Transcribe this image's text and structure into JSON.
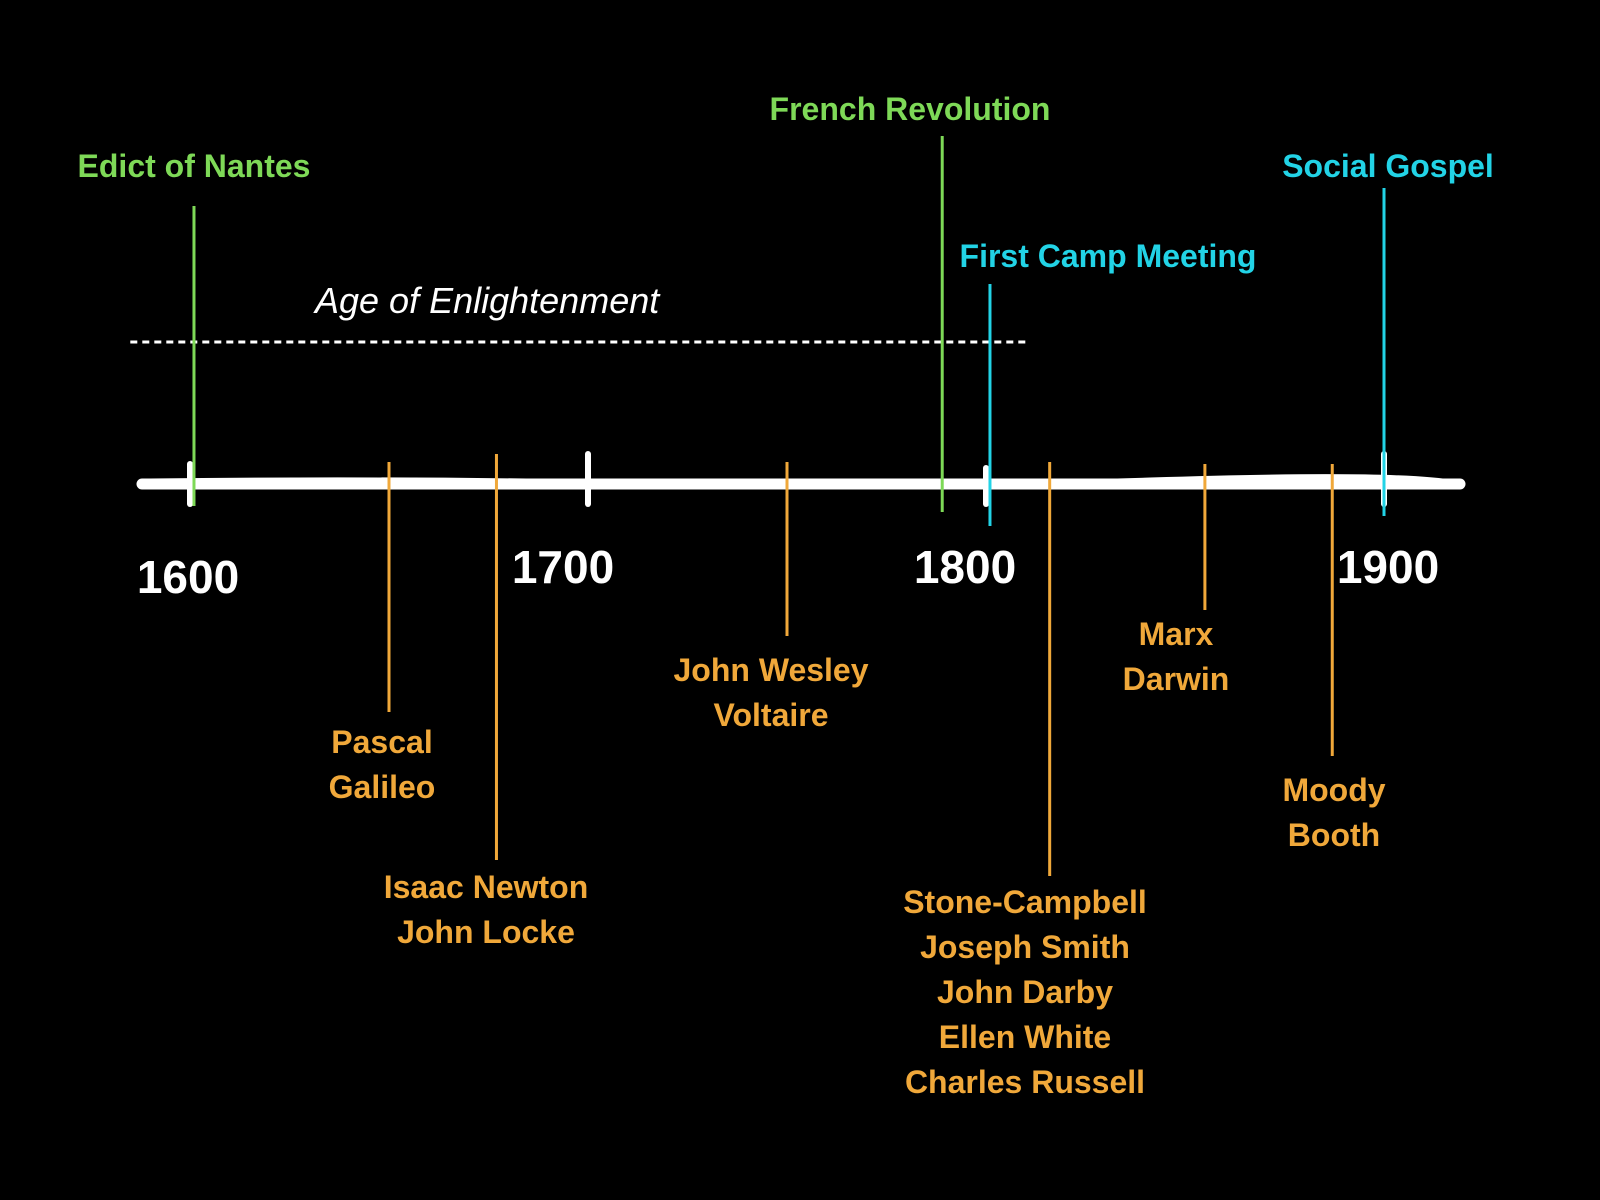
{
  "era": {
    "label": "Age of Enlightenment",
    "start_year": 1585,
    "end_year": 1810
  },
  "axis": {
    "year_labels": [
      "1600",
      "1700",
      "1800",
      "1900"
    ]
  },
  "events": [
    {
      "id": "edict-of-nantes",
      "lines": [
        "Edict of Nantes"
      ],
      "year": 1601,
      "category": "green"
    },
    {
      "id": "french-revolution",
      "lines": [
        "French Revolution"
      ],
      "year": 1789,
      "category": "green"
    },
    {
      "id": "first-camp-meeting",
      "lines": [
        "First Camp Meeting"
      ],
      "year": 1801,
      "category": "cyan"
    },
    {
      "id": "social-gospel",
      "lines": [
        "Social Gospel"
      ],
      "year": 1900,
      "category": "cyan"
    }
  ],
  "people": [
    {
      "id": "pascal-galileo",
      "lines": [
        "Pascal",
        "Galileo"
      ],
      "year": 1650
    },
    {
      "id": "newton-locke",
      "lines": [
        "Isaac Newton",
        "John Locke"
      ],
      "year": 1677
    },
    {
      "id": "wesley-voltaire",
      "lines": [
        "John Wesley",
        "Voltaire"
      ],
      "year": 1750
    },
    {
      "id": "restoration-figures",
      "lines": [
        "Stone-Campbell",
        "Joseph Smith",
        "John Darby",
        "Ellen White",
        "Charles Russell"
      ],
      "year": 1816
    },
    {
      "id": "marx-darwin",
      "lines": [
        "Marx",
        "Darwin"
      ],
      "year": 1855
    },
    {
      "id": "moody-booth",
      "lines": [
        "Moody",
        "Booth"
      ],
      "year": 1887
    }
  ],
  "colors": {
    "background": "#000000",
    "axis": "#ffffff",
    "green": "#7ed957",
    "cyan": "#22d3e6",
    "orange": "#f0a83a"
  }
}
